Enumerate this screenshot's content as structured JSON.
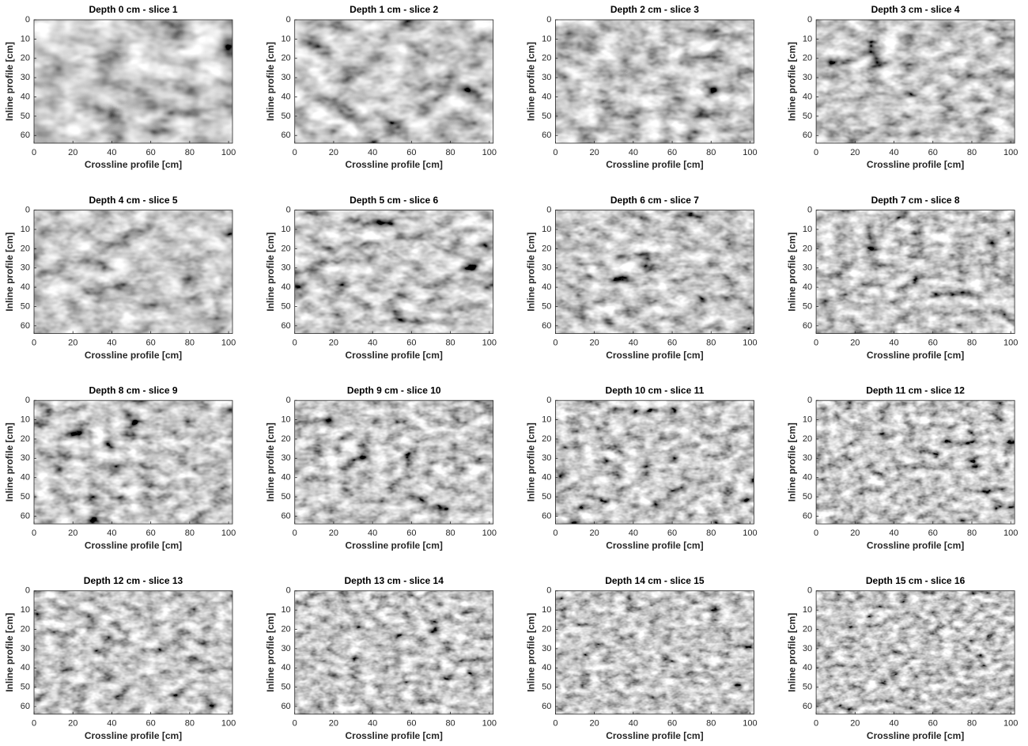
{
  "chart_data": [
    {
      "type": "heatmap",
      "title": "Depth 0 cm - slice 1",
      "xlabel": "Crossline profile [cm]",
      "ylabel": "Inline profile [cm]",
      "xlim": [
        0,
        102
      ],
      "ylim": [
        0,
        64
      ],
      "y_inverted": true,
      "xticks": [
        0,
        20,
        40,
        60,
        80,
        100
      ],
      "yticks": [
        0,
        10,
        20,
        30,
        40,
        50,
        60
      ],
      "colormap": "gray"
    },
    {
      "type": "heatmap",
      "title": "Depth 1 cm - slice 2",
      "xlabel": "Crossline profile [cm]",
      "ylabel": "Inline profile [cm]",
      "xlim": [
        0,
        102
      ],
      "ylim": [
        0,
        64
      ],
      "y_inverted": true,
      "xticks": [
        0,
        20,
        40,
        60,
        80,
        100
      ],
      "yticks": [
        0,
        10,
        20,
        30,
        40,
        50,
        60
      ],
      "colormap": "gray"
    },
    {
      "type": "heatmap",
      "title": "Depth 2 cm - slice 3",
      "xlabel": "Crossline profile [cm]",
      "ylabel": "Inline profile [cm]",
      "xlim": [
        0,
        102
      ],
      "ylim": [
        0,
        64
      ],
      "y_inverted": true,
      "xticks": [
        0,
        20,
        40,
        60,
        80,
        100
      ],
      "yticks": [
        0,
        10,
        20,
        30,
        40,
        50,
        60
      ],
      "colormap": "gray"
    },
    {
      "type": "heatmap",
      "title": "Depth 3 cm - slice 4",
      "xlabel": "Crossline profile [cm]",
      "ylabel": "Inline profile [cm]",
      "xlim": [
        0,
        102
      ],
      "ylim": [
        0,
        64
      ],
      "y_inverted": true,
      "xticks": [
        0,
        20,
        40,
        60,
        80,
        100
      ],
      "yticks": [
        0,
        10,
        20,
        30,
        40,
        50,
        60
      ],
      "colormap": "gray"
    },
    {
      "type": "heatmap",
      "title": "Depth 4 cm - slice 5",
      "xlabel": "Crossline profile [cm]",
      "ylabel": "Inline profile [cm]",
      "xlim": [
        0,
        102
      ],
      "ylim": [
        0,
        64
      ],
      "y_inverted": true,
      "xticks": [
        0,
        20,
        40,
        60,
        80,
        100
      ],
      "yticks": [
        0,
        10,
        20,
        30,
        40,
        50,
        60
      ],
      "colormap": "gray"
    },
    {
      "type": "heatmap",
      "title": "Depth 5 cm - slice 6",
      "xlabel": "Crossline profile [cm]",
      "ylabel": "Inline profile [cm]",
      "xlim": [
        0,
        102
      ],
      "ylim": [
        0,
        64
      ],
      "y_inverted": true,
      "xticks": [
        0,
        20,
        40,
        60,
        80,
        100
      ],
      "yticks": [
        0,
        10,
        20,
        30,
        40,
        50,
        60
      ],
      "colormap": "gray"
    },
    {
      "type": "heatmap",
      "title": "Depth 6 cm - slice 7",
      "xlabel": "Crossline profile [cm]",
      "ylabel": "Inline profile [cm]",
      "xlim": [
        0,
        102
      ],
      "ylim": [
        0,
        64
      ],
      "y_inverted": true,
      "xticks": [
        0,
        20,
        40,
        60,
        80,
        100
      ],
      "yticks": [
        0,
        10,
        20,
        30,
        40,
        50,
        60
      ],
      "colormap": "gray"
    },
    {
      "type": "heatmap",
      "title": "Depth 7 cm - slice 8",
      "xlabel": "Crossline profile [cm]",
      "ylabel": "Inline profile [cm]",
      "xlim": [
        0,
        102
      ],
      "ylim": [
        0,
        64
      ],
      "y_inverted": true,
      "xticks": [
        0,
        20,
        40,
        60,
        80,
        100
      ],
      "yticks": [
        0,
        10,
        20,
        30,
        40,
        50,
        60
      ],
      "colormap": "gray"
    },
    {
      "type": "heatmap",
      "title": "Depth 8 cm - slice 9",
      "xlabel": "Crossline profile [cm]",
      "ylabel": "Inline profile [cm]",
      "xlim": [
        0,
        102
      ],
      "ylim": [
        0,
        64
      ],
      "y_inverted": true,
      "xticks": [
        0,
        20,
        40,
        60,
        80,
        100
      ],
      "yticks": [
        0,
        10,
        20,
        30,
        40,
        50,
        60
      ],
      "colormap": "gray"
    },
    {
      "type": "heatmap",
      "title": "Depth 9 cm - slice 10",
      "xlabel": "Crossline profile [cm]",
      "ylabel": "Inline profile [cm]",
      "xlim": [
        0,
        102
      ],
      "ylim": [
        0,
        64
      ],
      "y_inverted": true,
      "xticks": [
        0,
        20,
        40,
        60,
        80,
        100
      ],
      "yticks": [
        0,
        10,
        20,
        30,
        40,
        50,
        60
      ],
      "colormap": "gray"
    },
    {
      "type": "heatmap",
      "title": "Depth 10 cm - slice 11",
      "xlabel": "Crossline profile [cm]",
      "ylabel": "Inline profile [cm]",
      "xlim": [
        0,
        102
      ],
      "ylim": [
        0,
        64
      ],
      "y_inverted": true,
      "xticks": [
        0,
        20,
        40,
        60,
        80,
        100
      ],
      "yticks": [
        0,
        10,
        20,
        30,
        40,
        50,
        60
      ],
      "colormap": "gray"
    },
    {
      "type": "heatmap",
      "title": "Depth 11 cm - slice 12",
      "xlabel": "Crossline profile [cm]",
      "ylabel": "Inline profile [cm]",
      "xlim": [
        0,
        102
      ],
      "ylim": [
        0,
        64
      ],
      "y_inverted": true,
      "xticks": [
        0,
        20,
        40,
        60,
        80,
        100
      ],
      "yticks": [
        0,
        10,
        20,
        30,
        40,
        50,
        60
      ],
      "colormap": "gray"
    },
    {
      "type": "heatmap",
      "title": "Depth 12 cm - slice 13",
      "xlabel": "Crossline profile [cm]",
      "ylabel": "Inline profile [cm]",
      "xlim": [
        0,
        102
      ],
      "ylim": [
        0,
        64
      ],
      "y_inverted": true,
      "xticks": [
        0,
        20,
        40,
        60,
        80,
        100
      ],
      "yticks": [
        0,
        10,
        20,
        30,
        40,
        50,
        60
      ],
      "colormap": "gray"
    },
    {
      "type": "heatmap",
      "title": "Depth 13 cm - slice 14",
      "xlabel": "Crossline profile [cm]",
      "ylabel": "Inline profile [cm]",
      "xlim": [
        0,
        102
      ],
      "ylim": [
        0,
        64
      ],
      "y_inverted": true,
      "xticks": [
        0,
        20,
        40,
        60,
        80,
        100
      ],
      "yticks": [
        0,
        10,
        20,
        30,
        40,
        50,
        60
      ],
      "colormap": "gray"
    },
    {
      "type": "heatmap",
      "title": "Depth 14 cm - slice 15",
      "xlabel": "Crossline profile [cm]",
      "ylabel": "Inline profile [cm]",
      "xlim": [
        0,
        102
      ],
      "ylim": [
        0,
        64
      ],
      "y_inverted": true,
      "xticks": [
        0,
        20,
        40,
        60,
        80,
        100
      ],
      "yticks": [
        0,
        10,
        20,
        30,
        40,
        50,
        60
      ],
      "colormap": "gray"
    },
    {
      "type": "heatmap",
      "title": "Depth 15 cm - slice 16",
      "xlabel": "Crossline profile [cm]",
      "ylabel": "Inline profile [cm]",
      "xlim": [
        0,
        102
      ],
      "ylim": [
        0,
        64
      ],
      "y_inverted": true,
      "xticks": [
        0,
        20,
        40,
        60,
        80,
        100
      ],
      "yticks": [
        0,
        10,
        20,
        30,
        40,
        50,
        60
      ],
      "colormap": "gray"
    }
  ]
}
